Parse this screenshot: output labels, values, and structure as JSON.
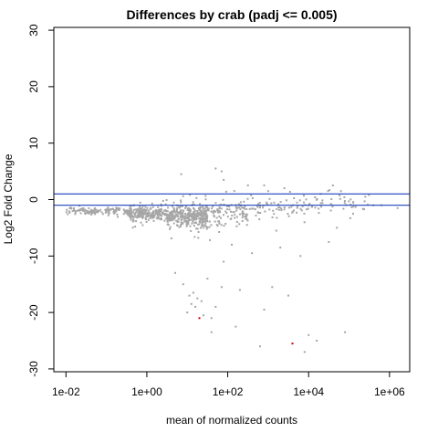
{
  "chart_data": {
    "type": "scatter",
    "title": "Differences by crab (padj <= 0.005)",
    "xlabel": "mean of normalized counts",
    "ylabel": "Log2 Fold Change",
    "x_scale": "log10",
    "xlim_log10": [
      -2.3,
      6.5
    ],
    "ylim": [
      -30.5,
      30.5
    ],
    "x_ticks": [
      {
        "value": -2,
        "label": "1e-02"
      },
      {
        "value": 0,
        "label": "1e+00"
      },
      {
        "value": 2,
        "label": "1e+02"
      },
      {
        "value": 4,
        "label": "1e+04"
      },
      {
        "value": 6,
        "label": "1e+06"
      }
    ],
    "y_ticks": [
      {
        "value": -30,
        "label": "-30"
      },
      {
        "value": -20,
        "label": "-20"
      },
      {
        "value": -10,
        "label": "-10"
      },
      {
        "value": 0,
        "label": "0"
      },
      {
        "value": 10,
        "label": "10"
      },
      {
        "value": 20,
        "label": "20"
      },
      {
        "value": 30,
        "label": "30"
      }
    ],
    "hlines": [
      {
        "y": 1,
        "color": "#1f3fbf"
      },
      {
        "y": -1,
        "color": "#1f3fbf"
      }
    ],
    "colors": {
      "point": "#a6a6a6",
      "highlight": "#cc0000",
      "axis": "#000000"
    },
    "grid": false,
    "legend": "none",
    "highlight_points": [
      {
        "x_log10": 1.3,
        "y": -21.0
      },
      {
        "x_log10": 3.6,
        "y": -25.5
      }
    ],
    "outlier_points": [
      {
        "x_log10": 1.05,
        "y": -17.0
      },
      {
        "x_log10": 1.15,
        "y": -16.5
      },
      {
        "x_log10": 1.25,
        "y": -17.5
      },
      {
        "x_log10": 1.35,
        "y": -18.0
      },
      {
        "x_log10": 1.2,
        "y": -19.0
      },
      {
        "x_log10": 1.1,
        "y": -18.5
      },
      {
        "x_log10": 1.0,
        "y": -20.0
      },
      {
        "x_log10": 1.4,
        "y": -20.5
      },
      {
        "x_log10": 1.6,
        "y": -21.0
      },
      {
        "x_log10": 1.7,
        "y": -19.0
      },
      {
        "x_log10": 1.6,
        "y": -23.5
      },
      {
        "x_log10": 2.2,
        "y": -22.5
      },
      {
        "x_log10": 2.8,
        "y": -26.0
      },
      {
        "x_log10": 3.9,
        "y": -27.0
      },
      {
        "x_log10": 4.2,
        "y": -25.0
      },
      {
        "x_log10": 4.9,
        "y": -23.5
      },
      {
        "x_log10": 4.0,
        "y": -24.0
      },
      {
        "x_log10": 2.3,
        "y": -16.0
      },
      {
        "x_log10": 2.9,
        "y": -19.5
      },
      {
        "x_log10": 3.1,
        "y": -15.5
      },
      {
        "x_log10": 0.7,
        "y": -13.0
      },
      {
        "x_log10": 0.9,
        "y": -15.0
      },
      {
        "x_log10": 1.5,
        "y": -14.0
      },
      {
        "x_log10": 1.85,
        "y": -15.5
      },
      {
        "x_log10": 3.5,
        "y": -17.0
      },
      {
        "x_log10": 2.6,
        "y": -9.5
      },
      {
        "x_log10": 3.3,
        "y": -8.5
      },
      {
        "x_log10": 3.8,
        "y": -10.0
      },
      {
        "x_log10": 4.5,
        "y": -7.5
      },
      {
        "x_log10": 2.1,
        "y": -8.0
      },
      {
        "x_log10": 1.9,
        "y": -11.0
      },
      {
        "x_log10": 3.2,
        "y": -5.5
      },
      {
        "x_log10": 4.7,
        "y": -5.0
      },
      {
        "x_log10": 5.1,
        "y": -2.5
      },
      {
        "x_log10": 5.6,
        "y": -1.0
      },
      {
        "x_log10": 6.2,
        "y": -1.5
      },
      {
        "x_log10": 5.8,
        "y": -1.0
      },
      {
        "x_log10": 4.3,
        "y": 1.0
      },
      {
        "x_log10": 4.8,
        "y": 1.5
      },
      {
        "x_log10": 3.4,
        "y": 2.0
      },
      {
        "x_log10": 2.5,
        "y": 2.5
      },
      {
        "x_log10": 1.9,
        "y": 3.5
      },
      {
        "x_log10": 1.7,
        "y": 5.5
      },
      {
        "x_log10": 1.85,
        "y": 5.0
      },
      {
        "x_log10": 0.85,
        "y": 4.5
      },
      {
        "x_log10": 2.9,
        "y": 2.5
      },
      {
        "x_log10": 3.0,
        "y": 1.5
      },
      {
        "x_log10": 4.6,
        "y": 2.5
      },
      {
        "x_log10": 5.4,
        "y": 0.5
      }
    ],
    "cloud": {
      "description_note": "",
      "bands": [
        {
          "x_from": -2.0,
          "x_to": -0.5,
          "y_center": -2.0,
          "y_spread": 0.6,
          "n": 120
        },
        {
          "x_from": -0.5,
          "x_to": 0.5,
          "y_center": -2.5,
          "y_spread": 1.2,
          "n": 260
        },
        {
          "x_from": 0.5,
          "x_to": 1.5,
          "y_center": -3.0,
          "y_spread": 1.8,
          "n": 360
        },
        {
          "x_from": 1.5,
          "x_to": 2.5,
          "y_center": -2.5,
          "y_spread": 2.2,
          "n": 110
        },
        {
          "x_from": 2.5,
          "x_to": 4.0,
          "y_center": -1.5,
          "y_spread": 2.0,
          "n": 70
        },
        {
          "x_from": 4.0,
          "x_to": 5.5,
          "y_center": -0.8,
          "y_spread": 1.5,
          "n": 40
        }
      ]
    }
  }
}
